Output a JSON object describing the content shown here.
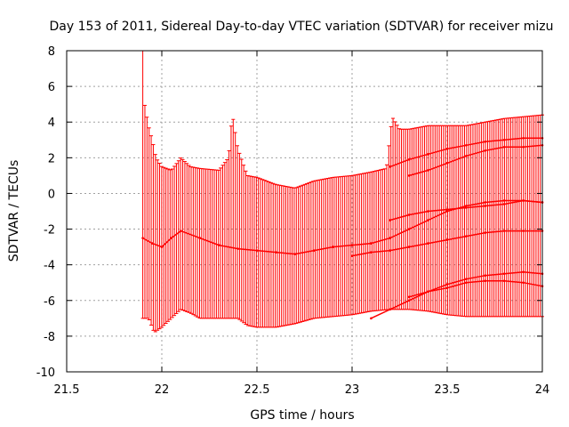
{
  "chart_data": {
    "type": "line",
    "title": "Day 153 of 2011, Sidereal Day-to-day VTEC variation (SDTVAR) for receiver mizu",
    "xlabel": "GPS time / hours",
    "ylabel": "SDTVAR / TECUs",
    "xlim": [
      21.5,
      24
    ],
    "ylim": [
      -10,
      8
    ],
    "xticks": [
      21.5,
      22,
      22.5,
      23,
      23.5,
      24
    ],
    "xtick_labels": [
      "21.5",
      "22",
      "22.5",
      "23",
      "23.5",
      "24"
    ],
    "yticks": [
      -10,
      -8,
      -6,
      -4,
      -2,
      0,
      2,
      4,
      6,
      8
    ],
    "ytick_labels": [
      "-10",
      "-8",
      "-6",
      "-4",
      "-2",
      "0",
      "2",
      "4",
      "6",
      "8"
    ],
    "grid": true,
    "color": "#ff0000",
    "errorbar_envelope": {
      "description": "Vertical error bars sampled across time; upper and lower bounds of the spread",
      "upper": [
        [
          21.9,
          8.0
        ],
        [
          21.91,
          5.0
        ],
        [
          21.93,
          3.8
        ],
        [
          21.95,
          3.0
        ],
        [
          21.97,
          2.0
        ],
        [
          22.0,
          1.5
        ],
        [
          22.05,
          1.3
        ],
        [
          22.1,
          2.0
        ],
        [
          22.15,
          1.5
        ],
        [
          22.2,
          1.4
        ],
        [
          22.3,
          1.3
        ],
        [
          22.35,
          2.0
        ],
        [
          22.37,
          4.5
        ],
        [
          22.4,
          2.5
        ],
        [
          22.45,
          1.0
        ],
        [
          22.5,
          0.9
        ],
        [
          22.6,
          0.5
        ],
        [
          22.7,
          0.3
        ],
        [
          22.8,
          0.7
        ],
        [
          22.9,
          0.9
        ],
        [
          23.0,
          1.0
        ],
        [
          23.1,
          1.2
        ],
        [
          23.18,
          1.4
        ],
        [
          23.21,
          4.3
        ],
        [
          23.25,
          3.6
        ],
        [
          23.3,
          3.6
        ],
        [
          23.4,
          3.8
        ],
        [
          23.5,
          3.8
        ],
        [
          23.6,
          3.8
        ],
        [
          23.7,
          4.0
        ],
        [
          23.8,
          4.2
        ],
        [
          23.9,
          4.3
        ],
        [
          24.0,
          4.4
        ]
      ],
      "lower": [
        [
          21.9,
          -7.0
        ],
        [
          21.93,
          -7.0
        ],
        [
          21.96,
          -7.8
        ],
        [
          22.0,
          -7.5
        ],
        [
          22.05,
          -7.0
        ],
        [
          22.1,
          -6.5
        ],
        [
          22.15,
          -6.7
        ],
        [
          22.2,
          -7.0
        ],
        [
          22.3,
          -7.0
        ],
        [
          22.4,
          -7.0
        ],
        [
          22.45,
          -7.4
        ],
        [
          22.5,
          -7.5
        ],
        [
          22.6,
          -7.5
        ],
        [
          22.7,
          -7.3
        ],
        [
          22.8,
          -7.0
        ],
        [
          22.9,
          -6.9
        ],
        [
          23.0,
          -6.8
        ],
        [
          23.1,
          -6.6
        ],
        [
          23.2,
          -6.5
        ],
        [
          23.3,
          -6.5
        ],
        [
          23.4,
          -6.6
        ],
        [
          23.5,
          -6.8
        ],
        [
          23.6,
          -6.9
        ],
        [
          23.7,
          -6.9
        ],
        [
          23.8,
          -6.9
        ],
        [
          23.9,
          -6.9
        ],
        [
          24.0,
          -6.9
        ]
      ]
    },
    "series": [
      {
        "name": "trace-main",
        "x": [
          21.9,
          21.95,
          22.0,
          22.05,
          22.1,
          22.2,
          22.3,
          22.4,
          22.5,
          22.6,
          22.7,
          22.8,
          22.9,
          23.0,
          23.1,
          23.2,
          23.3,
          23.4,
          23.5,
          23.6,
          23.7,
          23.8,
          23.9,
          24.0
        ],
        "y": [
          -2.5,
          -2.8,
          -3.0,
          -2.5,
          -2.1,
          -2.5,
          -2.9,
          -3.1,
          -3.2,
          -3.3,
          -3.4,
          -3.2,
          -3.0,
          -2.9,
          -2.8,
          -2.5,
          -2.0,
          -1.5,
          -1.0,
          -0.7,
          -0.5,
          -0.4,
          -0.4,
          -0.5
        ]
      },
      {
        "name": "trace-upper-1",
        "x": [
          23.2,
          23.3,
          23.4,
          23.5,
          23.6,
          23.7,
          23.8,
          23.9,
          24.0
        ],
        "y": [
          1.5,
          1.9,
          2.2,
          2.5,
          2.7,
          2.9,
          3.0,
          3.1,
          3.1
        ]
      },
      {
        "name": "trace-upper-2",
        "x": [
          23.3,
          23.4,
          23.5,
          23.6,
          23.7,
          23.8,
          23.9,
          24.0
        ],
        "y": [
          1.0,
          1.3,
          1.7,
          2.1,
          2.4,
          2.6,
          2.6,
          2.7
        ]
      },
      {
        "name": "trace-mid-1",
        "x": [
          23.2,
          23.3,
          23.4,
          23.5,
          23.6,
          23.7,
          23.8,
          23.9,
          24.0
        ],
        "y": [
          -1.5,
          -1.2,
          -1.0,
          -0.9,
          -0.8,
          -0.7,
          -0.6,
          -0.4,
          -0.5
        ]
      },
      {
        "name": "trace-mid-2",
        "x": [
          23.0,
          23.1,
          23.2,
          23.3,
          23.4,
          23.5,
          23.6,
          23.7,
          23.8,
          23.9,
          24.0
        ],
        "y": [
          -3.5,
          -3.3,
          -3.2,
          -3.0,
          -2.8,
          -2.6,
          -2.4,
          -2.2,
          -2.1,
          -2.1,
          -2.1
        ]
      },
      {
        "name": "trace-low-1",
        "x": [
          23.1,
          23.2,
          23.3,
          23.4,
          23.5,
          23.6,
          23.7,
          23.8,
          23.9,
          24.0
        ],
        "y": [
          -7.0,
          -6.5,
          -6.0,
          -5.5,
          -5.1,
          -4.8,
          -4.6,
          -4.5,
          -4.4,
          -4.5
        ]
      },
      {
        "name": "trace-low-2",
        "x": [
          23.3,
          23.4,
          23.5,
          23.6,
          23.7,
          23.8,
          23.9,
          24.0
        ],
        "y": [
          -5.8,
          -5.5,
          -5.3,
          -5.0,
          -4.9,
          -4.9,
          -5.0,
          -5.2
        ]
      }
    ]
  }
}
